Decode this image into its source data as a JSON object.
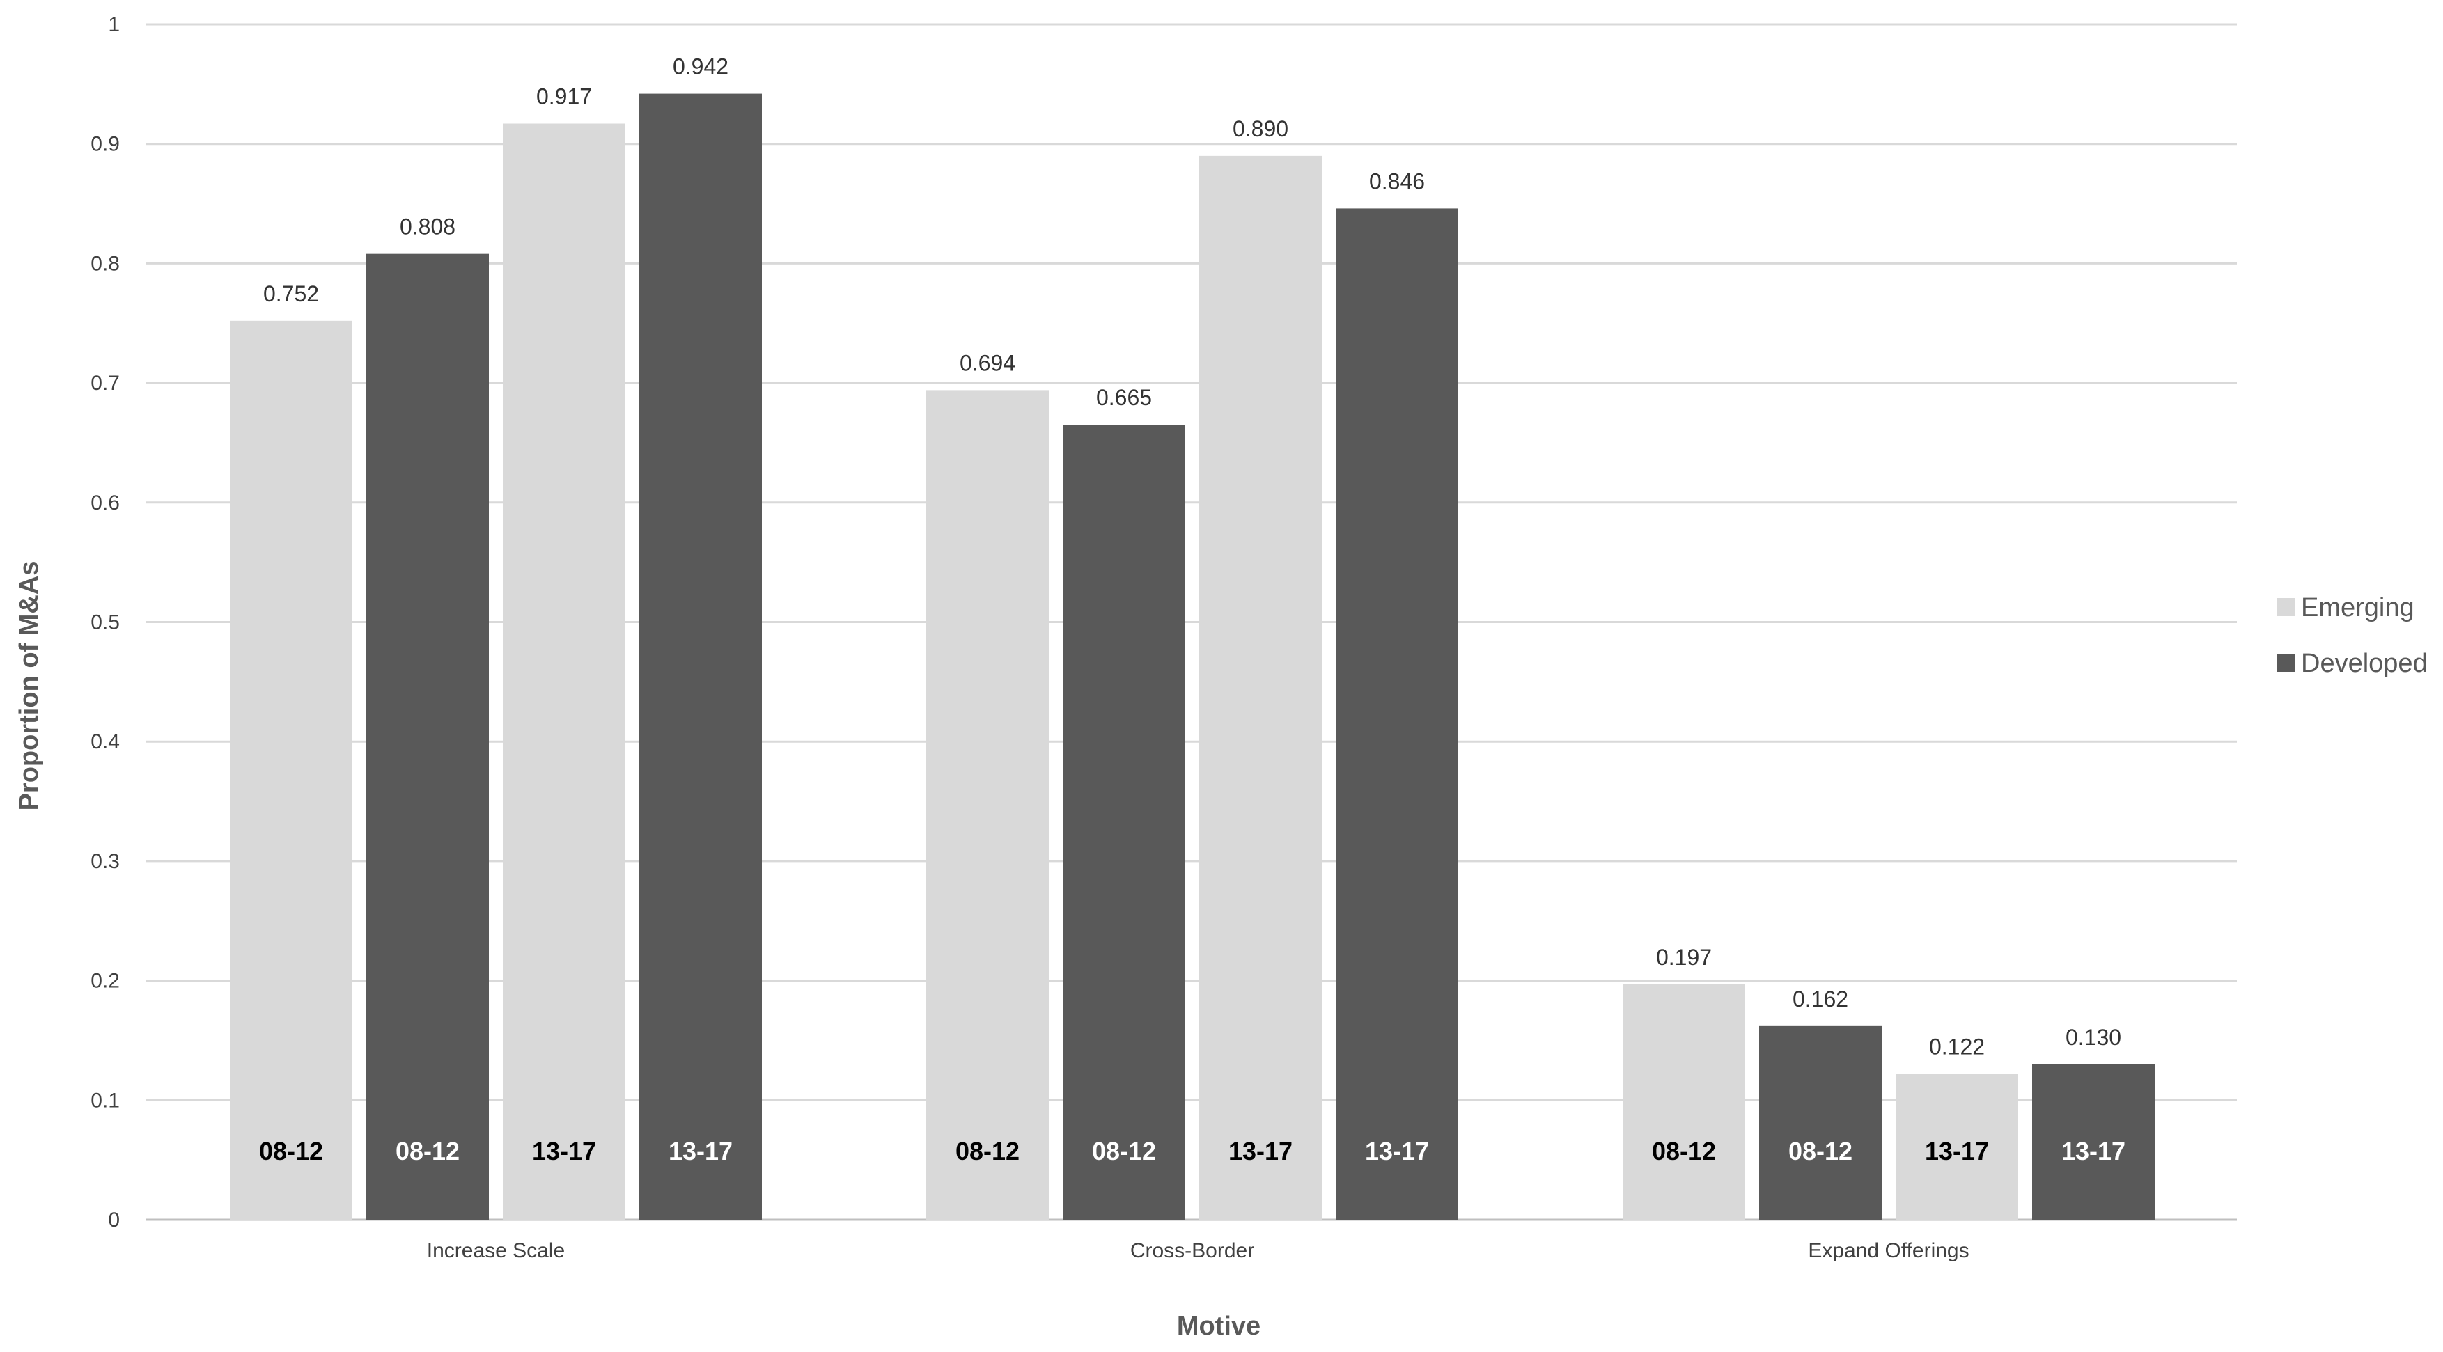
{
  "chart_data": {
    "type": "bar",
    "title": "",
    "xlabel": "Motive",
    "ylabel": "Proportion of M&As",
    "ylim": [
      0,
      1
    ],
    "yticks": [
      "0",
      "0.1",
      "0.2",
      "0.3",
      "0.4",
      "0.5",
      "0.6",
      "0.7",
      "0.8",
      "0.9",
      "1"
    ],
    "grid": true,
    "legend_position": "right",
    "categories": [
      "Increase Scale",
      "Cross-Border",
      "Expand Offerings"
    ],
    "bars_per_category": [
      {
        "series": "Emerging",
        "period": "08-12"
      },
      {
        "series": "Developed",
        "period": "08-12"
      },
      {
        "series": "Emerging",
        "period": "13-17"
      },
      {
        "series": "Developed",
        "period": "13-17"
      }
    ],
    "series": [
      {
        "name": "Emerging",
        "color": "#d9d9d9",
        "period_label_color": "#000000",
        "values_08_12": [
          0.752,
          0.694,
          0.197
        ],
        "values_13_17": [
          0.917,
          0.89,
          0.122
        ]
      },
      {
        "name": "Developed",
        "color": "#595959",
        "period_label_color": "#ffffff",
        "values_08_12": [
          0.808,
          0.665,
          0.162
        ],
        "values_13_17": [
          0.942,
          0.846,
          0.13
        ]
      }
    ],
    "value_labels": [
      [
        "0.752",
        "0.808",
        "0.917",
        "0.942"
      ],
      [
        "0.694",
        "0.665",
        "0.890",
        "0.846"
      ],
      [
        "0.197",
        "0.162",
        "0.122",
        "0.130"
      ]
    ]
  }
}
